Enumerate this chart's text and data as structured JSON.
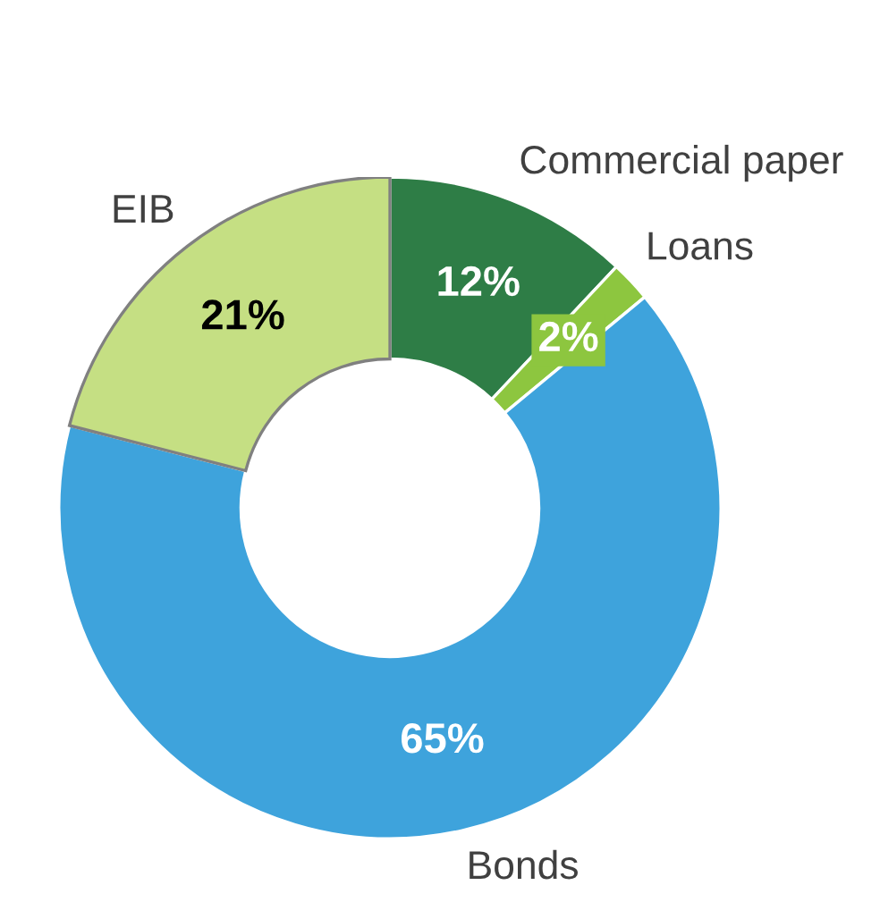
{
  "chart_data": {
    "type": "donut",
    "categories": [
      "Commercial paper",
      "Loans",
      "Bonds",
      "EIB"
    ],
    "values": [
      12,
      2,
      65,
      21
    ],
    "value_labels": [
      "12%",
      "2%",
      "65%",
      "21%"
    ],
    "colors": [
      "#2e7d46",
      "#8dc63f",
      "#3ea3dc",
      "#c5df83"
    ],
    "legend": false
  }
}
